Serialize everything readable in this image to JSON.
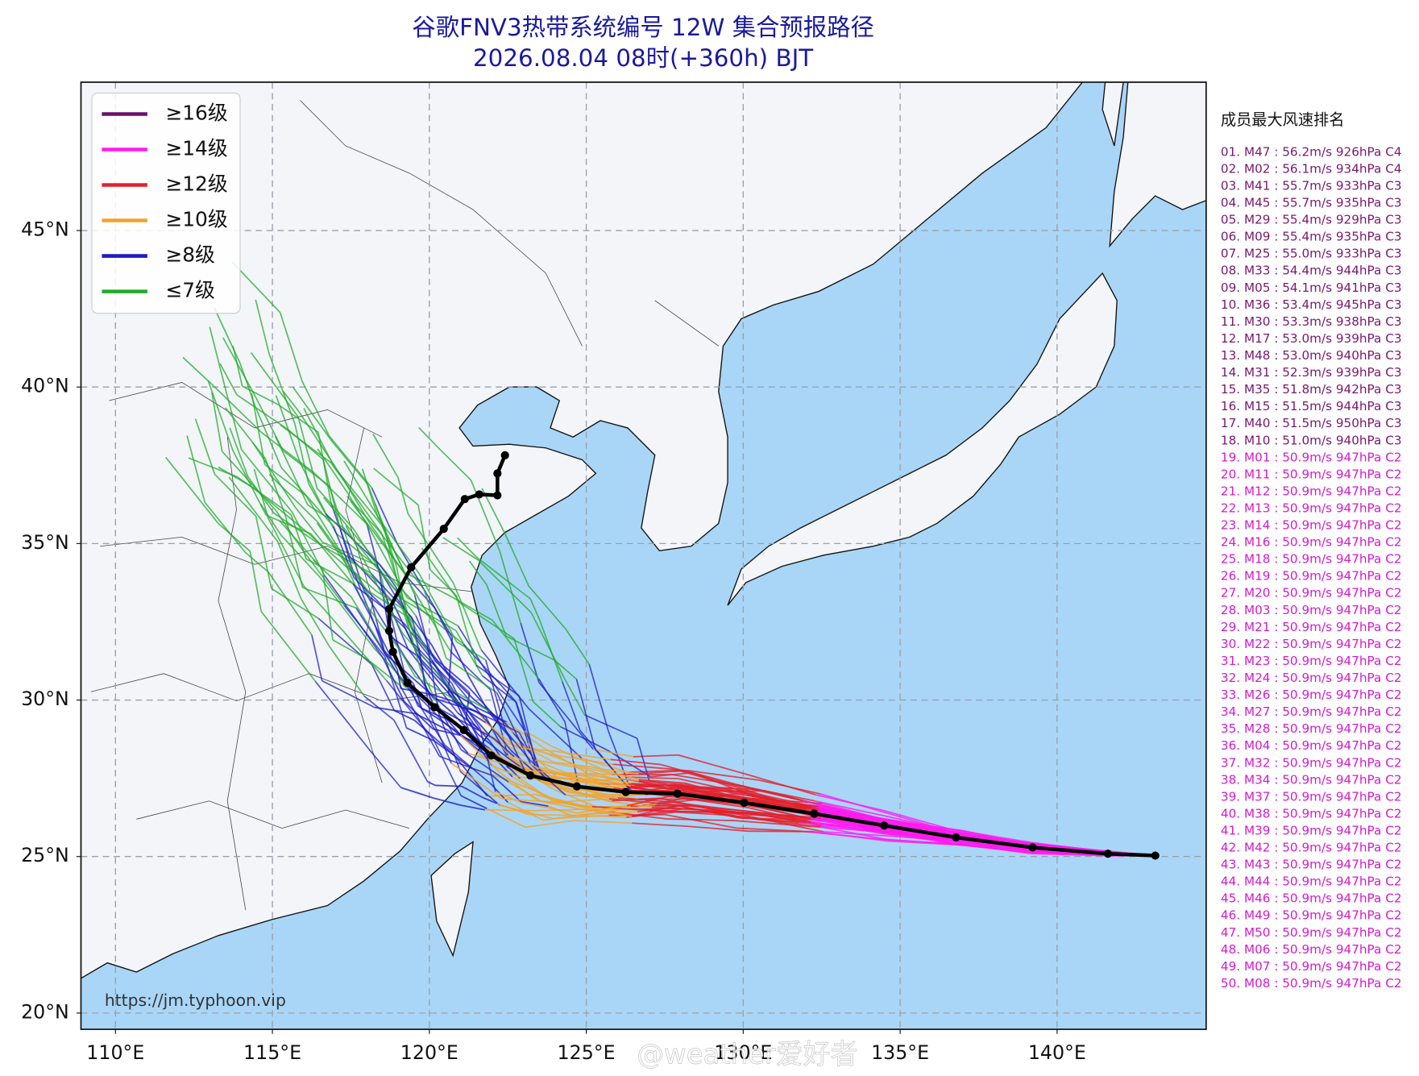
{
  "title": [
    "谷歌FNV3热带系统编号 12W 集合预报路径",
    "2026.08.04 08时(+360h) BJT"
  ],
  "chart_data": {
    "type": "map",
    "xlim": [
      108.9,
      144.75
    ],
    "ylim": [
      19.48,
      49.74
    ],
    "xticks": [
      {
        "value": 110,
        "label": "110°E"
      },
      {
        "value": 115,
        "label": "115°E"
      },
      {
        "value": 120,
        "label": "120°E"
      },
      {
        "value": 125,
        "label": "125°E"
      },
      {
        "value": 130,
        "label": "130°E"
      },
      {
        "value": 135,
        "label": "135°E"
      },
      {
        "value": 140,
        "label": "140°E"
      }
    ],
    "yticks": [
      {
        "value": 20,
        "label": "20°N"
      },
      {
        "value": 25,
        "label": "25°N"
      },
      {
        "value": 30,
        "label": "30°N"
      },
      {
        "value": 35,
        "label": "35°N"
      },
      {
        "value": 40,
        "label": "40°N"
      },
      {
        "value": 45,
        "label": "45°N"
      }
    ],
    "grid": true,
    "legend": [
      {
        "name": "≥16级",
        "color": "#6b0f6b"
      },
      {
        "name": "≥14级",
        "color": "#ff1cf0"
      },
      {
        "name": "≥12级",
        "color": "#e3202c"
      },
      {
        "name": "≥10级",
        "color": "#f2a42a"
      },
      {
        "name": "≥8级",
        "color": "#1c1cc4"
      },
      {
        "name": "≤7级",
        "color": "#22aa2a"
      }
    ],
    "mean_track": {
      "color": "#000000",
      "lon": [
        143.13,
        141.62,
        139.22,
        136.78,
        134.49,
        132.26,
        130.03,
        127.91,
        126.26,
        124.7,
        123.22,
        121.97,
        121.1,
        120.17,
        119.3,
        118.84,
        118.72,
        118.72,
        119.42,
        120.46,
        121.13,
        121.59,
        122.17,
        122.17,
        122.41
      ],
      "lat": [
        25.03,
        25.09,
        25.29,
        25.61,
        25.99,
        26.37,
        26.72,
        27.01,
        27.06,
        27.24,
        27.59,
        28.23,
        29.04,
        29.77,
        30.55,
        31.54,
        32.21,
        32.91,
        34.24,
        35.47,
        36.42,
        36.57,
        36.54,
        37.24,
        37.82
      ]
    }
  },
  "watermark": "https://jm.typhoon.vip",
  "credit": "@weather爱好者",
  "ranking": {
    "title": "成员最大风速排名",
    "items": [
      {
        "text": "01. M47 : 56.2m/s 926hPa C4",
        "color": "#7a1870"
      },
      {
        "text": "02. M02 : 56.1m/s 934hPa C4",
        "color": "#7a1870"
      },
      {
        "text": "03. M41 : 55.7m/s 933hPa C3",
        "color": "#7a1870"
      },
      {
        "text": "04. M45 : 55.7m/s 935hPa C3",
        "color": "#7a1870"
      },
      {
        "text": "05. M29 : 55.4m/s 929hPa C3",
        "color": "#7a1870"
      },
      {
        "text": "06. M09 : 55.4m/s 935hPa C3",
        "color": "#7a1870"
      },
      {
        "text": "07. M25 : 55.0m/s 933hPa C3",
        "color": "#7a1870"
      },
      {
        "text": "08. M33 : 54.4m/s 944hPa C3",
        "color": "#7a1870"
      },
      {
        "text": "09. M05 : 54.1m/s 941hPa C3",
        "color": "#7a1870"
      },
      {
        "text": "10. M36 : 53.4m/s 945hPa C3",
        "color": "#7a1870"
      },
      {
        "text": "11. M30 : 53.3m/s 938hPa C3",
        "color": "#7a1870"
      },
      {
        "text": "12. M17 : 53.0m/s 939hPa C3",
        "color": "#7a1870"
      },
      {
        "text": "13. M48 : 53.0m/s 940hPa C3",
        "color": "#7a1870"
      },
      {
        "text": "14. M31 : 52.3m/s 939hPa C3",
        "color": "#7a1870"
      },
      {
        "text": "15. M35 : 51.8m/s 942hPa C3",
        "color": "#7a1870"
      },
      {
        "text": "16. M15 : 51.5m/s 944hPa C3",
        "color": "#7a1870"
      },
      {
        "text": "17. M40 : 51.5m/s 950hPa C3",
        "color": "#7a1870"
      },
      {
        "text": "18. M10 : 51.0m/s 940hPa C3",
        "color": "#7a1870"
      },
      {
        "text": "19. M01 : 50.9m/s 947hPa C2",
        "color": "#d21ccc"
      },
      {
        "text": "20. M11 : 50.9m/s 947hPa C2",
        "color": "#d21ccc"
      },
      {
        "text": "21. M12 : 50.9m/s 947hPa C2",
        "color": "#d21ccc"
      },
      {
        "text": "22. M13 : 50.9m/s 947hPa C2",
        "color": "#d21ccc"
      },
      {
        "text": "23. M14 : 50.9m/s 947hPa C2",
        "color": "#d21ccc"
      },
      {
        "text": "24. M16 : 50.9m/s 947hPa C2",
        "color": "#d21ccc"
      },
      {
        "text": "25. M18 : 50.9m/s 947hPa C2",
        "color": "#d21ccc"
      },
      {
        "text": "26. M19 : 50.9m/s 947hPa C2",
        "color": "#d21ccc"
      },
      {
        "text": "27. M20 : 50.9m/s 947hPa C2",
        "color": "#d21ccc"
      },
      {
        "text": "28. M03 : 50.9m/s 947hPa C2",
        "color": "#d21ccc"
      },
      {
        "text": "29. M21 : 50.9m/s 947hPa C2",
        "color": "#d21ccc"
      },
      {
        "text": "30. M22 : 50.9m/s 947hPa C2",
        "color": "#d21ccc"
      },
      {
        "text": "31. M23 : 50.9m/s 947hPa C2",
        "color": "#d21ccc"
      },
      {
        "text": "32. M24 : 50.9m/s 947hPa C2",
        "color": "#d21ccc"
      },
      {
        "text": "33. M26 : 50.9m/s 947hPa C2",
        "color": "#d21ccc"
      },
      {
        "text": "34. M27 : 50.9m/s 947hPa C2",
        "color": "#d21ccc"
      },
      {
        "text": "35. M28 : 50.9m/s 947hPa C2",
        "color": "#d21ccc"
      },
      {
        "text": "36. M04 : 50.9m/s 947hPa C2",
        "color": "#d21ccc"
      },
      {
        "text": "37. M32 : 50.9m/s 947hPa C2",
        "color": "#d21ccc"
      },
      {
        "text": "38. M34 : 50.9m/s 947hPa C2",
        "color": "#d21ccc"
      },
      {
        "text": "39. M37 : 50.9m/s 947hPa C2",
        "color": "#d21ccc"
      },
      {
        "text": "40. M38 : 50.9m/s 947hPa C2",
        "color": "#d21ccc"
      },
      {
        "text": "41. M39 : 50.9m/s 947hPa C2",
        "color": "#d21ccc"
      },
      {
        "text": "42. M42 : 50.9m/s 947hPa C2",
        "color": "#d21ccc"
      },
      {
        "text": "43. M43 : 50.9m/s 947hPa C2",
        "color": "#d21ccc"
      },
      {
        "text": "44. M44 : 50.9m/s 947hPa C2",
        "color": "#d21ccc"
      },
      {
        "text": "45. M46 : 50.9m/s 947hPa C2",
        "color": "#d21ccc"
      },
      {
        "text": "46. M49 : 50.9m/s 947hPa C2",
        "color": "#d21ccc"
      },
      {
        "text": "47. M50 : 50.9m/s 947hPa C2",
        "color": "#d21ccc"
      },
      {
        "text": "48. M06 : 50.9m/s 947hPa C2",
        "color": "#d21ccc"
      },
      {
        "text": "49. M07 : 50.9m/s 947hPa C2",
        "color": "#d21ccc"
      },
      {
        "text": "50. M08 : 50.9m/s 947hPa C2",
        "color": "#d21ccc"
      }
    ]
  }
}
